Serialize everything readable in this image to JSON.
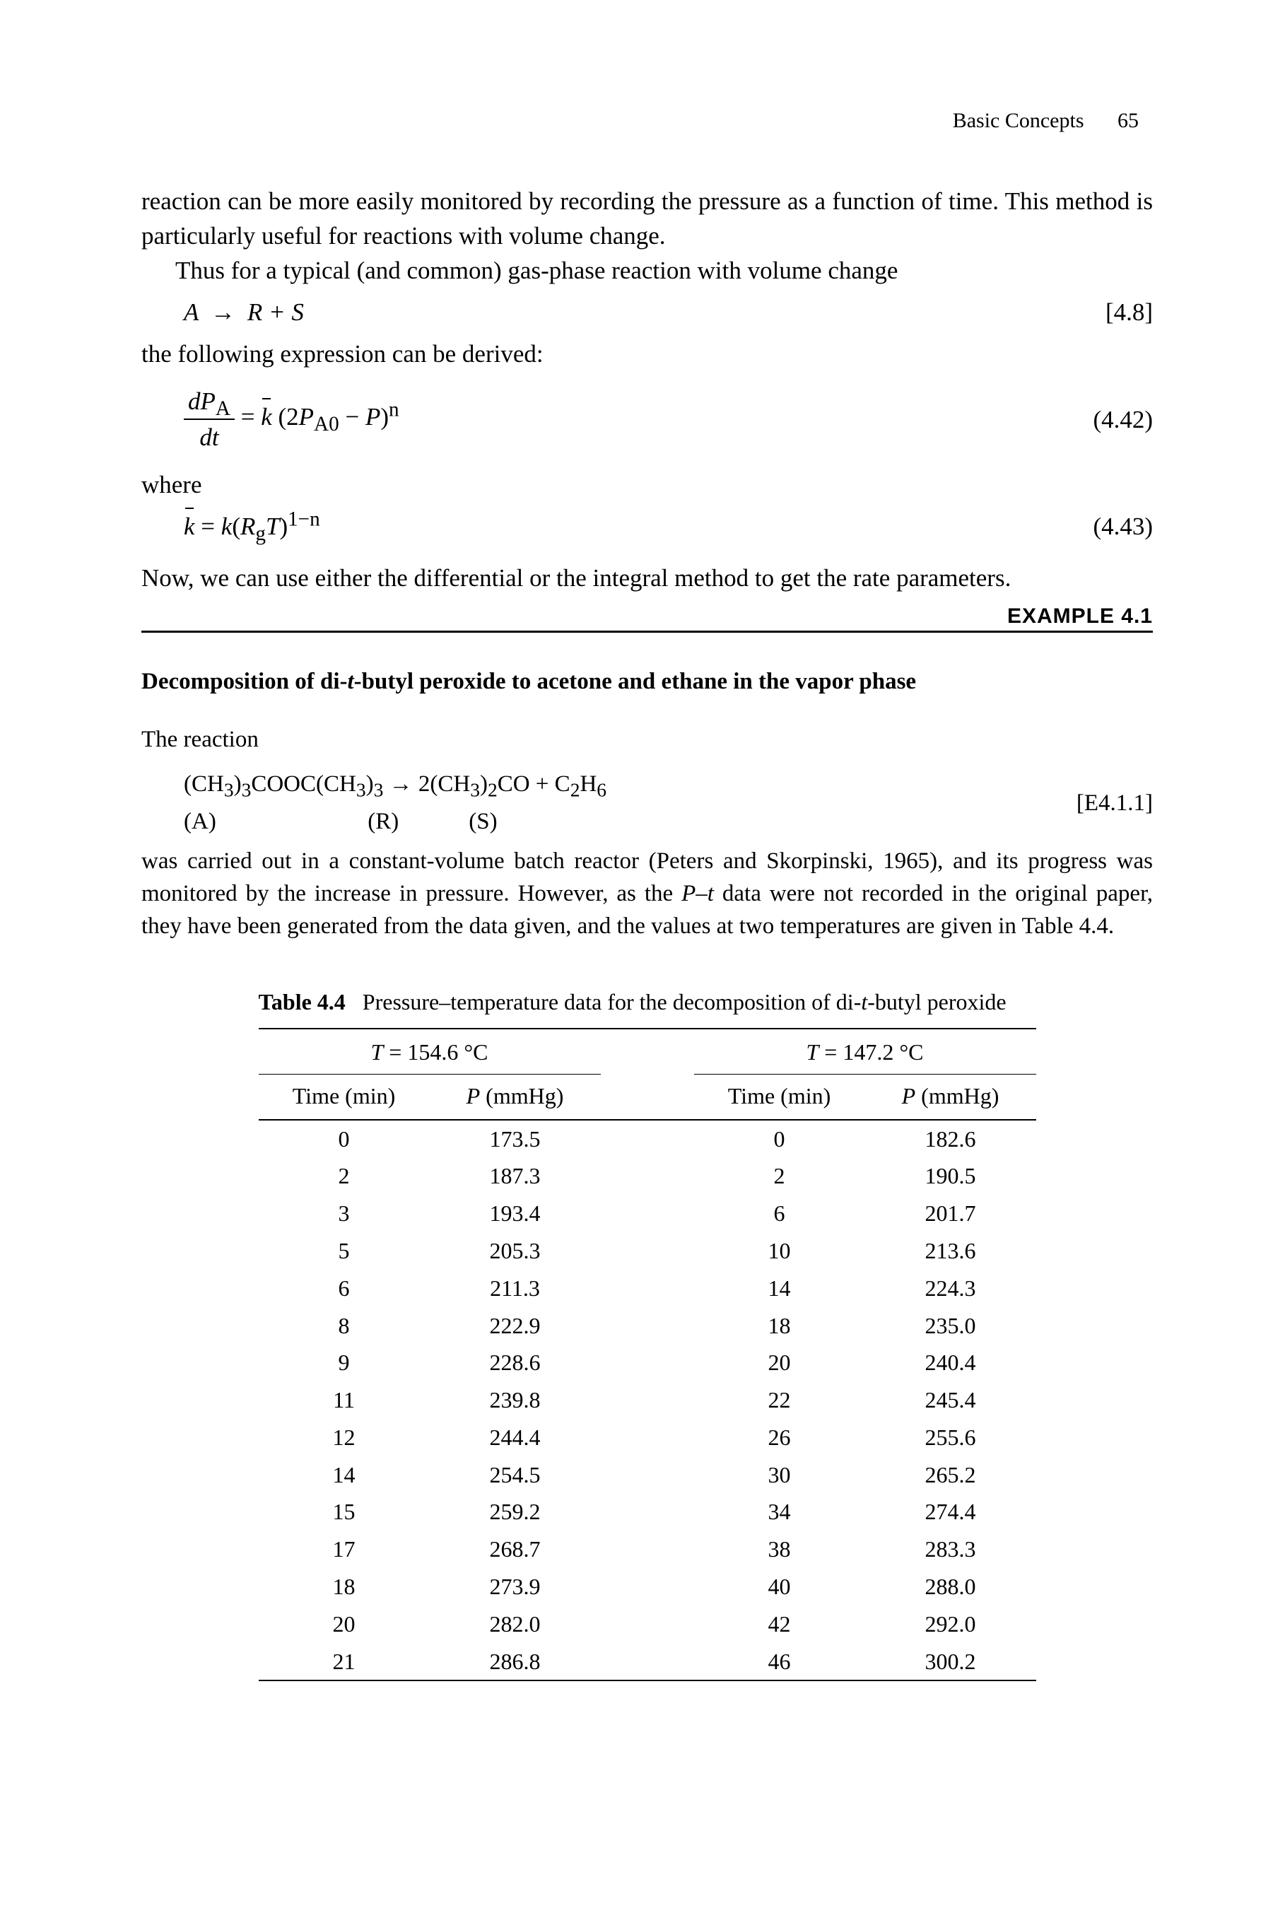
{
  "header": {
    "chapter": "Basic Concepts",
    "page": "65"
  },
  "para1_a": "reaction can be more easily monitored by recording the pressure as a function of time. This method is particularly useful for reactions with volume change.",
  "para1_b": "Thus for a typical (and common) gas-phase reaction with volume change",
  "eq48": {
    "lhs_A": "A",
    "arrow": "→",
    "rhs": "R + S",
    "num": "[4.8]"
  },
  "para2": "the following expression can be derived:",
  "eq442": {
    "frac_num_pre": "d",
    "frac_num_var": "P",
    "frac_num_sub": "A",
    "frac_den_pre": "d",
    "frac_den_var": "t",
    "eq": " = ",
    "kbar": "k",
    "open": "(2",
    "P": "P",
    "A0": "A0",
    "minusP": " − ",
    "P2": "P",
    "close": ")",
    "sup": "n",
    "num": "(4.42)"
  },
  "where": "where",
  "eq443": {
    "kbar": "k",
    "eq": " = ",
    "k": "k",
    "open": "(",
    "Rg_R": "R",
    "Rg_g": "g",
    "T": "T",
    "close": ")",
    "sup": "1−n",
    "num": "(4.43)"
  },
  "para3": "Now, we can use either the differential or the integral method to get the rate parameters.",
  "example_label": "EXAMPLE 4.1",
  "example_title_pre": "Decomposition of di-",
  "example_title_t": "t",
  "example_title_post": "-butyl peroxide to acetone and ethane in the vapor phase",
  "ex_para1": "The reaction",
  "exeq": {
    "lhs": "(CH",
    "sub3a": "3",
    "mid1": ")",
    "sub3b": "3",
    "mid2": "COOC(CH",
    "sub3c": "3",
    "mid3": ")",
    "sub3d": "3",
    "arrow": " → 2(CH",
    "sub3e": "3",
    "mid4": ")",
    "sub2": "2",
    "mid5": "CO + C",
    "sub2b": "2",
    "mid6": "H",
    "sub6": "6",
    "labels": "(A)                          (R)            (S)",
    "num": "[E4.1.1]"
  },
  "ex_para2_a": "was carried out in a constant-volume batch reactor (Peters and Skorpinski, 1965), and its progress was monitored by the increase in pressure. However, as the ",
  "ex_para2_P": "P",
  "ex_para2_dash": "–",
  "ex_para2_t": "t",
  "ex_para2_b": " data were not recorded in the original paper, they have been generated from the data given, and the values at two temperatures are given in Table 4.4.",
  "table": {
    "label": "Table 4.4",
    "caption_a": "Pressure–temperature data for the decomposition of di-",
    "caption_t": "t",
    "caption_b": "-butyl peroxide",
    "grp1_pre": "T",
    "grp1_post": " = 154.6 °C",
    "grp2_pre": "T",
    "grp2_post": " = 147.2 °C",
    "col_time": "Time (min)",
    "col_P_pre": "P",
    "col_P_post": " (mmHg)",
    "rows": [
      {
        "t1": "0",
        "p1": "173.5",
        "t2": "0",
        "p2": "182.6"
      },
      {
        "t1": "2",
        "p1": "187.3",
        "t2": "2",
        "p2": "190.5"
      },
      {
        "t1": "3",
        "p1": "193.4",
        "t2": "6",
        "p2": "201.7"
      },
      {
        "t1": "5",
        "p1": "205.3",
        "t2": "10",
        "p2": "213.6"
      },
      {
        "t1": "6",
        "p1": "211.3",
        "t2": "14",
        "p2": "224.3"
      },
      {
        "t1": "8",
        "p1": "222.9",
        "t2": "18",
        "p2": "235.0"
      },
      {
        "t1": "9",
        "p1": "228.6",
        "t2": "20",
        "p2": "240.4"
      },
      {
        "t1": "11",
        "p1": "239.8",
        "t2": "22",
        "p2": "245.4"
      },
      {
        "t1": "12",
        "p1": "244.4",
        "t2": "26",
        "p2": "255.6"
      },
      {
        "t1": "14",
        "p1": "254.5",
        "t2": "30",
        "p2": "265.2"
      },
      {
        "t1": "15",
        "p1": "259.2",
        "t2": "34",
        "p2": "274.4"
      },
      {
        "t1": "17",
        "p1": "268.7",
        "t2": "38",
        "p2": "283.3"
      },
      {
        "t1": "18",
        "p1": "273.9",
        "t2": "40",
        "p2": "288.0"
      },
      {
        "t1": "20",
        "p1": "282.0",
        "t2": "42",
        "p2": "292.0"
      },
      {
        "t1": "21",
        "p1": "286.8",
        "t2": "46",
        "p2": "300.2"
      }
    ]
  }
}
